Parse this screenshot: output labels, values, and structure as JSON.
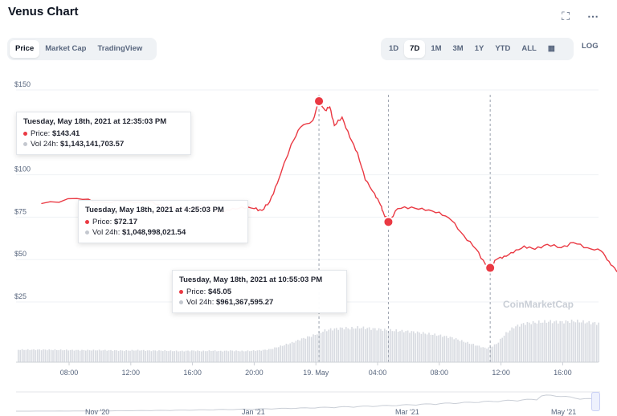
{
  "title": "Venus Chart",
  "tabs": [
    {
      "label": "Price",
      "active": true
    },
    {
      "label": "Market Cap",
      "active": false
    },
    {
      "label": "TradingView",
      "active": false
    }
  ],
  "ranges": [
    {
      "label": "1D",
      "active": false
    },
    {
      "label": "7D",
      "active": true
    },
    {
      "label": "1M",
      "active": false
    },
    {
      "label": "3M",
      "active": false
    },
    {
      "label": "1Y",
      "active": false
    },
    {
      "label": "YTD",
      "active": false
    },
    {
      "label": "ALL",
      "active": false
    }
  ],
  "log_label": "LOG",
  "icons": {
    "fullscreen": "expand-icon",
    "more": "more-dots-icon",
    "calendar": "calendar-icon"
  },
  "colors": {
    "line": "#ea3943",
    "volume": "#d8dbe1",
    "grid": "#eff2f5",
    "text": "#58667e"
  },
  "tooltips": [
    {
      "title": "Tuesday, May 18th, 2021 at 12:35:03 PM",
      "price_label": "Price:",
      "price": "$143.41",
      "vol_label": "Vol 24h:",
      "vol": "$1,143,141,703.57"
    },
    {
      "title": "Tuesday, May 18th, 2021 at 4:25:03 PM",
      "price_label": "Price:",
      "price": "$72.17",
      "vol_label": "Vol 24h:",
      "vol": "$1,048,998,021.54"
    },
    {
      "title": "Tuesday, May 18th, 2021 at 10:55:03 PM",
      "price_label": "Price:",
      "price": "$45.05",
      "vol_label": "Vol 24h:",
      "vol": "$961,367,595.27"
    }
  ],
  "watermark": "CoinMarketCap",
  "navigator_labels": [
    "Nov '20",
    "Jan '21",
    "Mar '21",
    "May '21"
  ],
  "chart_data": {
    "type": "line",
    "y_ticks": [
      "$150",
      "$100",
      "$75",
      "$50",
      "$25"
    ],
    "x_ticks": [
      "08:00",
      "12:00",
      "16:00",
      "20:00",
      "19. May",
      "04:00",
      "08:00",
      "12:00",
      "16:00"
    ],
    "x_hours": [
      -1.8,
      0.5,
      2,
      3.5,
      4.5,
      5.2,
      6,
      7.2,
      8,
      8.6,
      9.2,
      9.8,
      10.4,
      11.2,
      12,
      12.5,
      13,
      13.5,
      14.4,
      15,
      15.8,
      16.2,
      16.6,
      16.9,
      17.2,
      17.7,
      18.2,
      18.7,
      19.2,
      19.8,
      20.2,
      20.4,
      20.7,
      21.3,
      22.2,
      23.1,
      24,
      24.8,
      25.6,
      26.4,
      27,
      27.3,
      27.7,
      28.2,
      28.8,
      29.5,
      30.2,
      31,
      31.9,
      32.7,
      33.6,
      34.5,
      35,
      35.5,
      36,
      36.6,
      37.2,
      38,
      38.9,
      39.7,
      40.6,
      41.4,
      42.2,
      42.8
    ],
    "price": [
      83,
      86,
      84,
      84,
      84,
      84,
      82,
      80,
      80,
      82,
      80,
      78,
      79,
      81,
      80,
      79,
      84,
      95,
      118,
      128,
      132,
      143.4,
      138,
      140,
      129,
      134,
      122,
      113,
      97,
      89,
      82,
      77,
      72.2,
      80,
      81,
      79,
      78,
      73,
      64,
      56,
      47,
      45.1,
      50,
      52,
      54,
      58,
      56,
      59,
      57,
      60,
      57,
      55,
      49,
      43,
      41,
      44,
      43,
      50,
      56,
      55,
      59,
      57,
      54,
      53
    ],
    "volume": [
      0.27,
      0.26,
      0.26,
      0.25,
      0.26,
      0.25,
      0.25,
      0.24,
      0.25,
      0.24,
      0.25,
      0.24,
      0.25,
      0.24,
      0.25,
      0.26,
      0.28,
      0.33,
      0.42,
      0.5,
      0.58,
      0.64,
      0.69,
      0.71,
      0.72,
      0.74,
      0.73,
      0.75,
      0.74,
      0.72,
      0.71,
      0.7,
      0.69,
      0.68,
      0.66,
      0.62,
      0.58,
      0.53,
      0.44,
      0.36,
      0.3,
      0.33,
      0.4,
      0.6,
      0.76,
      0.84,
      0.86,
      0.88,
      0.87,
      0.89,
      0.86,
      0.83,
      0.78,
      0.72,
      0.74,
      0.77,
      0.79,
      0.81,
      0.8,
      0.78,
      0.77,
      0.76,
      0.76,
      0.75
    ],
    "grid": true,
    "legend": "none"
  }
}
